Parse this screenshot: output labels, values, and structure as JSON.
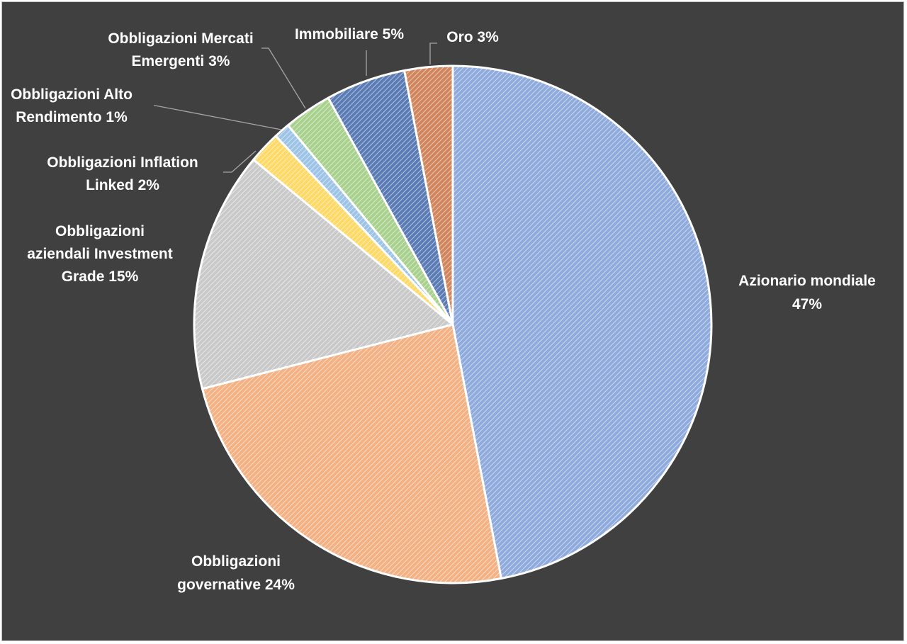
{
  "chart_data": {
    "type": "pie",
    "title": "",
    "start_angle_deg": 0,
    "direction": "clockwise",
    "slices": [
      {
        "label": "Azionario mondiale",
        "value": 47,
        "color": "#8faadc",
        "label_lines": [
          "Azionario mondiale",
          "47%"
        ]
      },
      {
        "label": "Obbligazioni governative",
        "value": 24,
        "color": "#f4b183",
        "label_lines": [
          "Obbligazioni",
          "governative 24%"
        ]
      },
      {
        "label": "Obbligazioni aziendali Investment Grade",
        "value": 15,
        "color": "#c9c9c9",
        "label_lines": [
          "Obbligazioni",
          "aziendali Investment",
          "Grade 15%"
        ]
      },
      {
        "label": "Obbligazioni Inflation Linked",
        "value": 2,
        "color": "#ffd966",
        "label_lines": [
          "Obbligazioni Inflation",
          "Linked 2%"
        ]
      },
      {
        "label": "Obbligazioni Alto Rendimento",
        "value": 1,
        "color": "#9dc3e6",
        "label_lines": [
          "Obbligazioni Alto",
          "Rendimento 1%"
        ]
      },
      {
        "label": "Obbligazioni Mercati Emergenti",
        "value": 3,
        "color": "#a9d18e",
        "label_lines": [
          "Obbligazioni Mercati",
          "Emergenti 3%"
        ]
      },
      {
        "label": "Immobiliare",
        "value": 5,
        "color": "#5b7bb5",
        "label_lines": [
          "Immobiliare 5%"
        ]
      },
      {
        "label": "Oro",
        "value": 3,
        "color": "#d0855c",
        "label_lines": [
          "Oro 3%"
        ]
      }
    ],
    "legend": "none",
    "hatch": "diagonal stripes"
  },
  "colors": {
    "background": "#404040",
    "slice_border": "#ffffff",
    "label_text": "#ffffff",
    "leader_line": "#a6a6a6"
  }
}
